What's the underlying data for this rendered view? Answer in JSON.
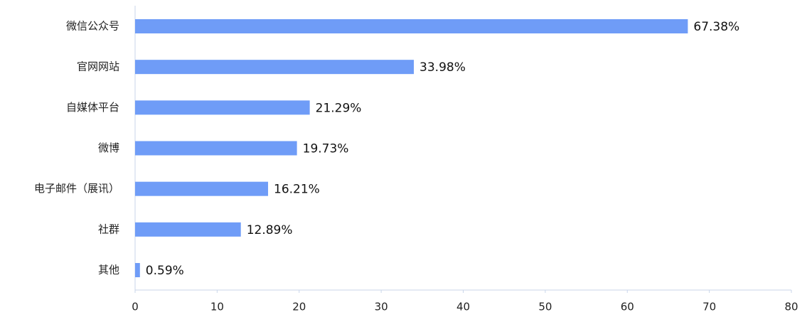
{
  "chart_data": {
    "type": "bar",
    "orientation": "horizontal",
    "categories": [
      "微信公众号",
      "官网网站",
      "自媒体平台",
      "微博",
      "电子邮件（展讯）",
      "社群",
      "其他"
    ],
    "values": [
      67.38,
      33.98,
      21.29,
      19.73,
      16.21,
      12.89,
      0.59
    ],
    "value_labels": [
      "67.38%",
      "33.98%",
      "21.29%",
      "19.73%",
      "16.21%",
      "12.89%",
      "0.59%"
    ],
    "color": "#6f9cf7",
    "xlim": [
      0,
      80
    ],
    "xticks": [
      0,
      10,
      20,
      30,
      40,
      50,
      60,
      70,
      80
    ],
    "grid": false
  }
}
